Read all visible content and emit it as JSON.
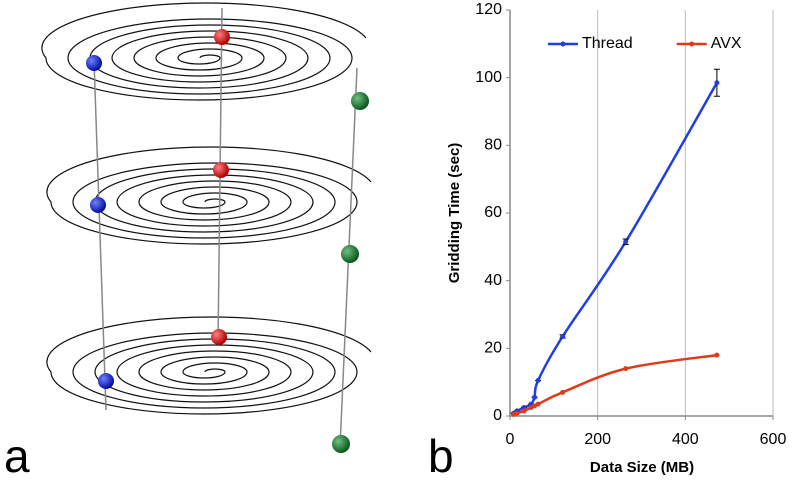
{
  "panel_labels": [
    "a",
    "b"
  ],
  "chart_data": {
    "type": "line",
    "x_label": "Data Size (MB)",
    "y_label": "Gridding Time (sec)",
    "x": [
      8,
      16,
      32,
      48,
      56,
      64,
      120,
      264,
      472
    ],
    "series": [
      {
        "name": "Thread",
        "color": "#1f3fe0",
        "values": [
          0.8,
          1.5,
          2.5,
          3.5,
          5.5,
          10.5,
          23.5,
          51.5,
          98.5
        ],
        "errors": [
          0,
          0,
          0,
          0,
          0,
          0,
          0.5,
          0.8,
          4
        ]
      },
      {
        "name": "AVX",
        "color": "#e03a1a",
        "values": [
          0.5,
          0.8,
          1.5,
          2.5,
          3,
          3.5,
          7,
          14,
          18
        ]
      }
    ],
    "xlim": [
      0,
      600
    ],
    "xticks": [
      0,
      200,
      400,
      600
    ],
    "ylim": [
      0,
      120
    ],
    "yticks": [
      0,
      20,
      40,
      60,
      80,
      100,
      120
    ],
    "grid": "x",
    "legend": "top"
  }
}
